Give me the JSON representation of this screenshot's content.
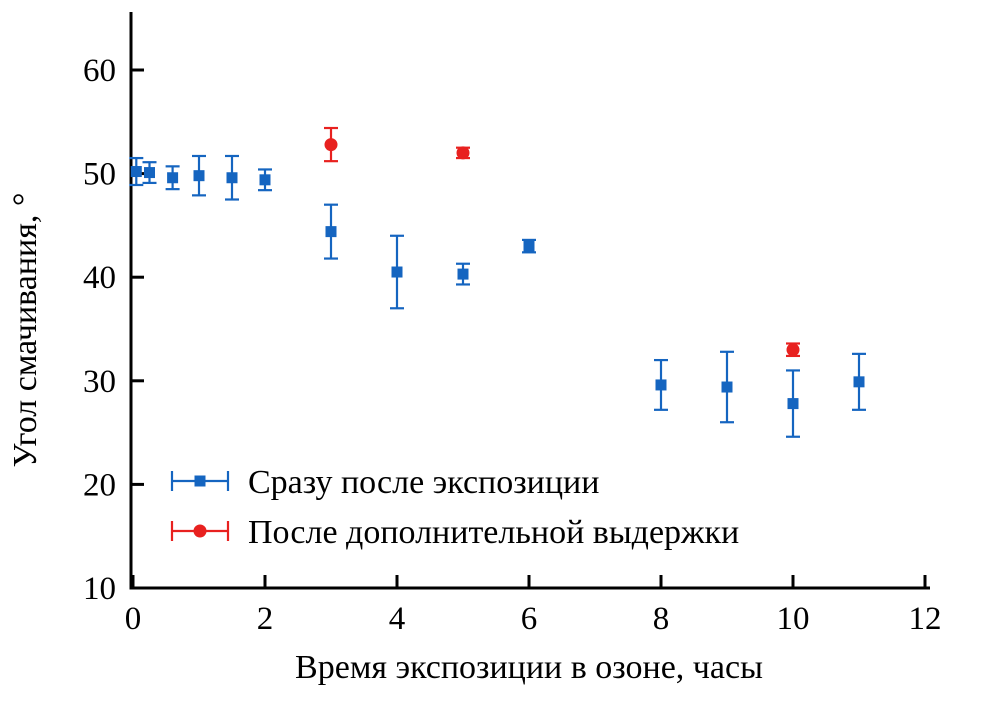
{
  "chart_data": {
    "type": "scatter",
    "title": "",
    "xlabel": "Время экспозиции в озоне, часы",
    "ylabel": "Угол смачивания, °",
    "xlim": [
      0,
      12
    ],
    "ylim": [
      10,
      60
    ],
    "xticks": [
      0,
      2,
      4,
      6,
      8,
      10,
      12
    ],
    "yticks": [
      10,
      20,
      30,
      40,
      50,
      60
    ],
    "grid": false,
    "legend_position": "inside-bottom-left",
    "axis_color": "#000000",
    "series": [
      {
        "name": "Сразу после экспозиции",
        "marker": "square",
        "color": "#1565c0",
        "points": [
          {
            "x": 0.05,
            "y": 50.2,
            "err": 1.3
          },
          {
            "x": 0.25,
            "y": 50.1,
            "err": 1.0
          },
          {
            "x": 0.6,
            "y": 49.6,
            "err": 1.1
          },
          {
            "x": 1.0,
            "y": 49.8,
            "err": 1.9
          },
          {
            "x": 1.5,
            "y": 49.6,
            "err": 2.1
          },
          {
            "x": 2.0,
            "y": 49.4,
            "err": 1.0
          },
          {
            "x": 3.0,
            "y": 44.4,
            "err": 2.6
          },
          {
            "x": 4.0,
            "y": 40.5,
            "err": 3.5
          },
          {
            "x": 5.0,
            "y": 40.3,
            "err": 1.0
          },
          {
            "x": 6.0,
            "y": 43.0,
            "err": 0.6
          },
          {
            "x": 8.0,
            "y": 29.6,
            "err": 2.4
          },
          {
            "x": 9.0,
            "y": 29.4,
            "err": 3.4
          },
          {
            "x": 10.0,
            "y": 27.8,
            "err": 3.2
          },
          {
            "x": 11.0,
            "y": 29.9,
            "err": 2.7
          }
        ]
      },
      {
        "name": "После дополнительной выдержки",
        "marker": "circle",
        "color": "#e8211f",
        "points": [
          {
            "x": 3.0,
            "y": 52.8,
            "err": 1.6
          },
          {
            "x": 5.0,
            "y": 52.0,
            "err": 0.5
          },
          {
            "x": 10.0,
            "y": 33.0,
            "err": 0.6
          }
        ]
      }
    ]
  }
}
